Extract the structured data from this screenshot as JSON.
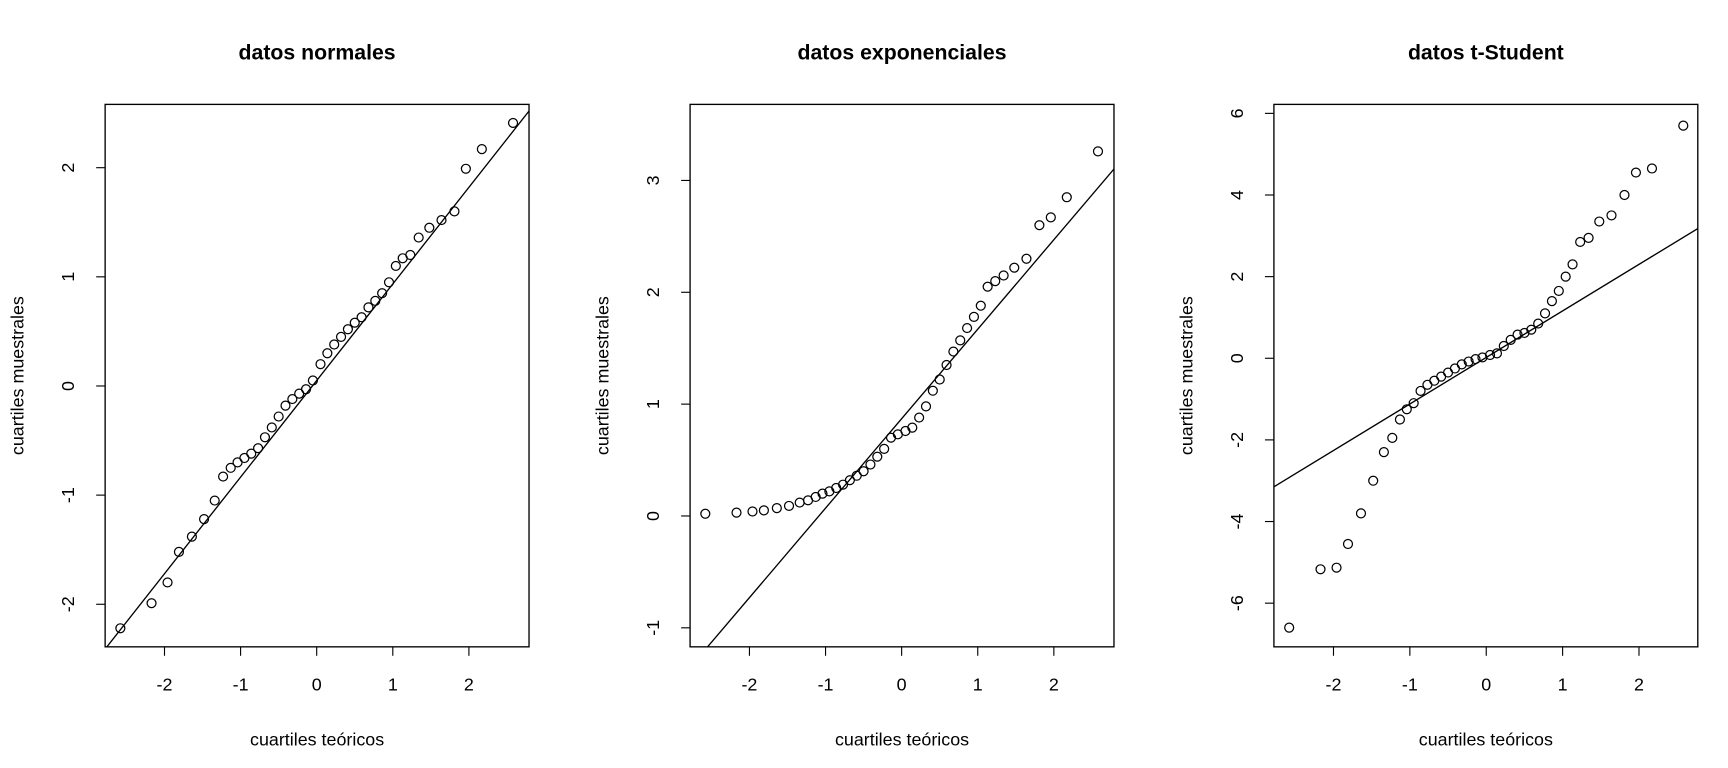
{
  "chart_data": [
    {
      "type": "scatter",
      "title": "datos normales",
      "x_label": "cuartiles teóricos",
      "y_label": "cuartiles muestrales",
      "x": [
        -2.58,
        -2.17,
        -1.96,
        -1.81,
        -1.64,
        -1.48,
        -1.34,
        -1.23,
        -1.13,
        -1.04,
        -0.95,
        -0.86,
        -0.77,
        -0.68,
        -0.59,
        -0.5,
        -0.41,
        -0.32,
        -0.23,
        -0.14,
        -0.05,
        0.05,
        0.14,
        0.23,
        0.32,
        0.41,
        0.5,
        0.59,
        0.68,
        0.77,
        0.86,
        0.95,
        1.04,
        1.13,
        1.23,
        1.34,
        1.48,
        1.64,
        1.81,
        1.96,
        2.17,
        2.58
      ],
      "values": [
        -2.22,
        -1.99,
        -1.8,
        -1.52,
        -1.38,
        -1.22,
        -1.05,
        -0.83,
        -0.75,
        -0.7,
        -0.66,
        -0.62,
        -0.57,
        -0.47,
        -0.38,
        -0.28,
        -0.18,
        -0.12,
        -0.07,
        -0.03,
        0.05,
        0.2,
        0.3,
        0.38,
        0.45,
        0.52,
        0.58,
        0.63,
        0.72,
        0.78,
        0.85,
        0.95,
        1.1,
        1.17,
        1.2,
        1.36,
        1.45,
        1.52,
        1.6,
        1.99,
        2.17,
        2.41
      ],
      "reference_line": {
        "intercept": 0.05,
        "slope": 0.885
      },
      "xlim": [
        -2.78,
        2.79
      ],
      "ylim": [
        -2.39,
        2.58
      ],
      "xticks": [
        -2,
        -1,
        0,
        1,
        2
      ],
      "yticks": [
        -2,
        -1,
        0,
        1,
        2
      ]
    },
    {
      "type": "scatter",
      "title": "datos exponenciales",
      "x_label": "cuartiles teóricos",
      "y_label": "cuartiles muestrales",
      "x": [
        -2.58,
        -2.17,
        -1.96,
        -1.81,
        -1.64,
        -1.48,
        -1.34,
        -1.23,
        -1.13,
        -1.04,
        -0.95,
        -0.86,
        -0.77,
        -0.68,
        -0.59,
        -0.5,
        -0.41,
        -0.32,
        -0.23,
        -0.14,
        -0.05,
        0.05,
        0.14,
        0.23,
        0.32,
        0.41,
        0.5,
        0.59,
        0.68,
        0.77,
        0.86,
        0.95,
        1.04,
        1.13,
        1.23,
        1.34,
        1.48,
        1.64,
        1.81,
        1.96,
        2.17,
        2.58
      ],
      "values": [
        0.02,
        0.03,
        0.04,
        0.05,
        0.07,
        0.09,
        0.12,
        0.14,
        0.17,
        0.2,
        0.22,
        0.25,
        0.28,
        0.32,
        0.36,
        0.4,
        0.46,
        0.53,
        0.6,
        0.7,
        0.73,
        0.76,
        0.79,
        0.88,
        0.98,
        1.12,
        1.22,
        1.35,
        1.47,
        1.57,
        1.68,
        1.78,
        1.88,
        2.05,
        2.1,
        2.15,
        2.22,
        2.3,
        2.6,
        2.67,
        2.85,
        3.26
      ],
      "reference_line": {
        "intercept": 0.87,
        "slope": 0.8
      },
      "xlim": [
        -2.78,
        2.79
      ],
      "ylim": [
        -1.17,
        3.68
      ],
      "xticks": [
        -2,
        -1,
        0,
        1,
        2
      ],
      "yticks": [
        -1,
        0,
        1,
        2,
        3
      ]
    },
    {
      "type": "scatter",
      "title": "datos t-Student",
      "x_label": "cuartiles teóricos",
      "y_label": "cuartiles muestrales",
      "x": [
        -2.58,
        -2.17,
        -1.96,
        -1.81,
        -1.64,
        -1.48,
        -1.34,
        -1.23,
        -1.13,
        -1.04,
        -0.95,
        -0.86,
        -0.77,
        -0.68,
        -0.59,
        -0.5,
        -0.41,
        -0.32,
        -0.23,
        -0.14,
        -0.05,
        0.05,
        0.14,
        0.23,
        0.32,
        0.41,
        0.5,
        0.59,
        0.68,
        0.77,
        0.86,
        0.95,
        1.04,
        1.13,
        1.23,
        1.34,
        1.48,
        1.64,
        1.81,
        1.96,
        2.17,
        2.58
      ],
      "values": [
        -6.6,
        -5.17,
        -5.13,
        -4.55,
        -3.8,
        -3.0,
        -2.3,
        -1.95,
        -1.5,
        -1.25,
        -1.1,
        -0.8,
        -0.65,
        -0.55,
        -0.45,
        -0.35,
        -0.25,
        -0.15,
        -0.08,
        -0.02,
        0.02,
        0.08,
        0.12,
        0.3,
        0.45,
        0.58,
        0.62,
        0.7,
        0.85,
        1.1,
        1.4,
        1.65,
        2.0,
        2.3,
        2.85,
        2.95,
        3.35,
        3.5,
        4.0,
        4.55,
        4.65,
        5.7
      ],
      "reference_line": {
        "intercept": 0.02,
        "slope": 1.14
      },
      "xlim": [
        -2.78,
        2.77
      ],
      "ylim": [
        -7.07,
        6.22
      ],
      "xticks": [
        -2,
        -1,
        0,
        1,
        2
      ],
      "yticks": [
        -6,
        -4,
        -2,
        0,
        2,
        4,
        6
      ]
    }
  ]
}
